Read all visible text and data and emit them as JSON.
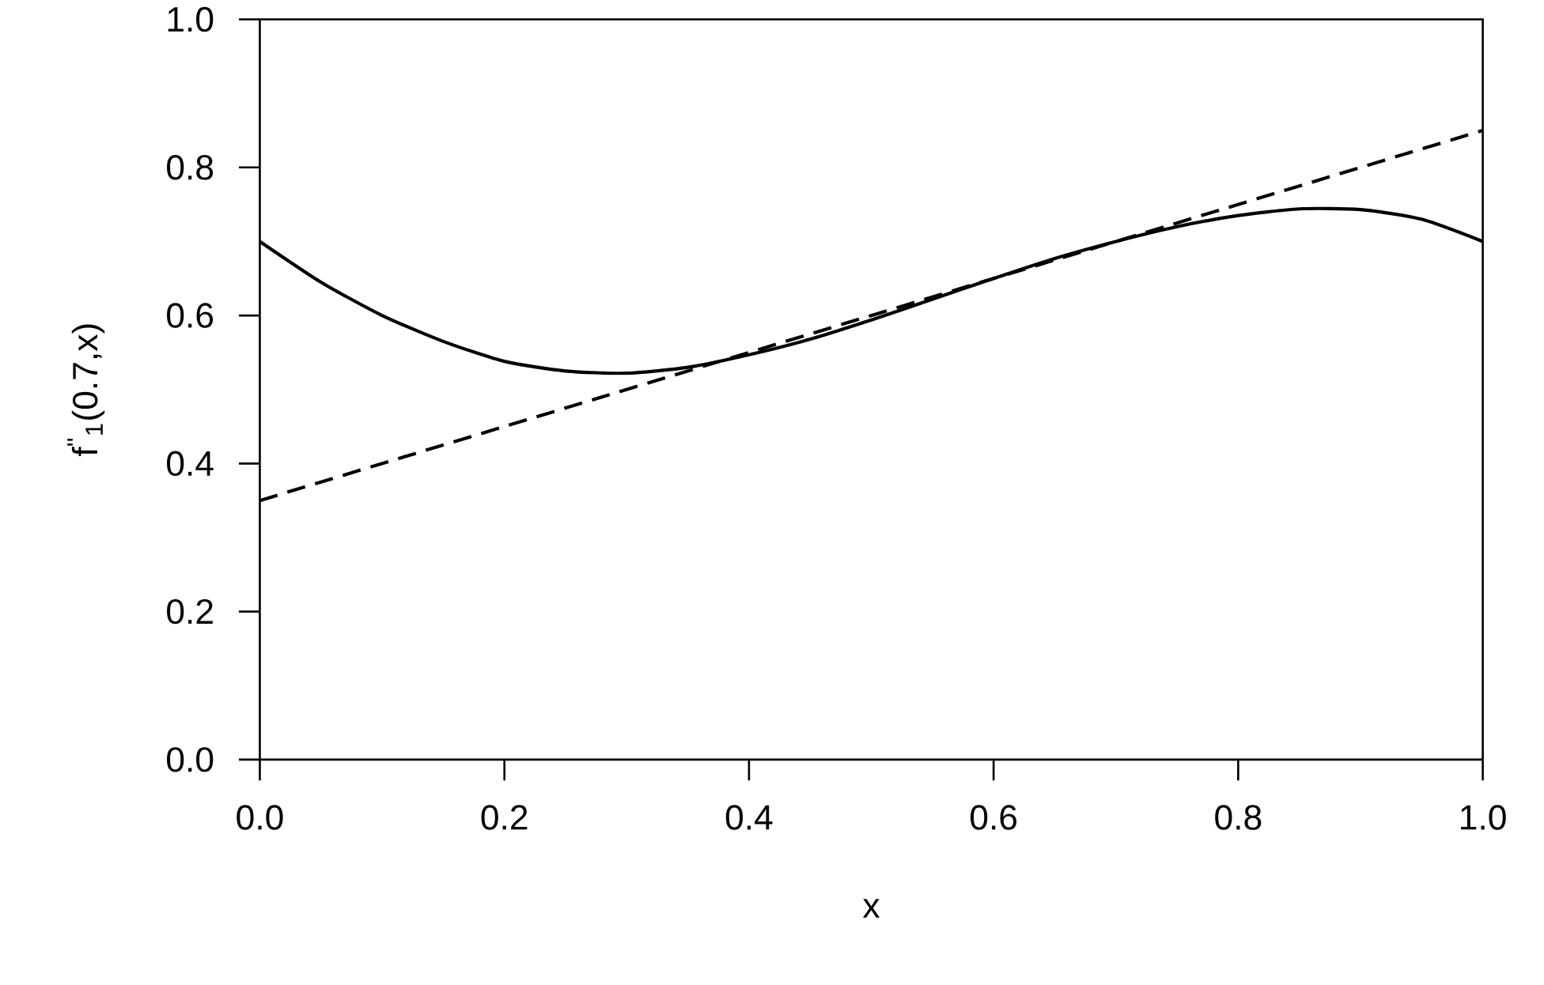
{
  "chart_data": {
    "type": "line",
    "xlabel": "x",
    "ylabel": "f$^{''}$$_{1}$(0.7,x)",
    "xlim": [
      0,
      1
    ],
    "ylim": [
      0,
      1
    ],
    "xticks": [
      {
        "value": 0,
        "label": "0.0"
      },
      0.2,
      0.4,
      0.6,
      0.8,
      {
        "value": 1,
        "label": "1.0"
      }
    ],
    "yticks": [
      {
        "value": 0,
        "label": "0.0"
      },
      0.2,
      0.4,
      0.6,
      0.8,
      {
        "value": 1,
        "label": "1.0"
      }
    ],
    "series": [
      {
        "color": "#000000",
        "line_style": "solid",
        "x": [
          0,
          0.05,
          0.1,
          0.15,
          0.2,
          0.25,
          0.3,
          0.35,
          0.4,
          0.45,
          0.5,
          0.55,
          0.6,
          0.65,
          0.7,
          0.75,
          0.8,
          0.85,
          0.9,
          0.95,
          1.0
        ],
        "values": [
          0.7,
          0.645,
          0.6,
          0.565,
          0.538,
          0.525,
          0.522,
          0.53,
          0.547,
          0.568,
          0.594,
          0.622,
          0.65,
          0.677,
          0.7,
          0.72,
          0.735,
          0.744,
          0.743,
          0.73,
          0.7
        ]
      },
      {
        "color": "#000000",
        "line_style": "dashed",
        "x": [
          0,
          1
        ],
        "values": [
          0.35,
          0.85
        ]
      }
    ]
  }
}
